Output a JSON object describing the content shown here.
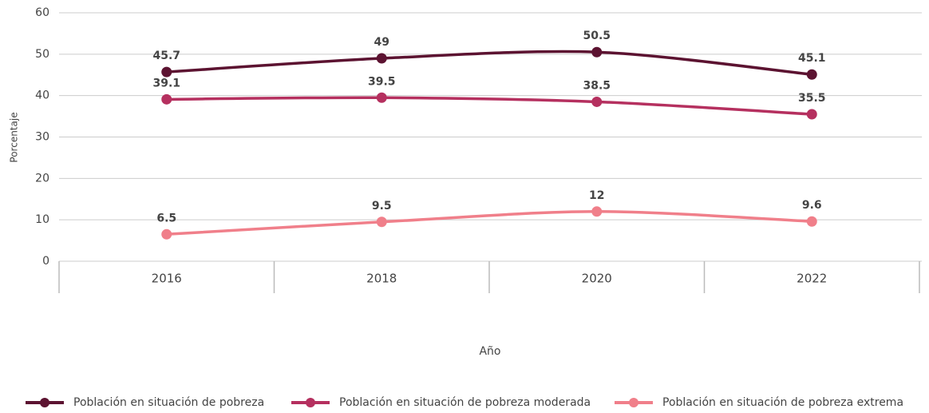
{
  "chart_data": {
    "type": "line",
    "x_label": "Año",
    "y_label": "Porcentaje",
    "categories": [
      "2016",
      "2018",
      "2020",
      "2022"
    ],
    "series": [
      {
        "name": "Población en situación de pobreza",
        "color": "#5c1331",
        "values": [
          45.7,
          49,
          50.5,
          45.1
        ]
      },
      {
        "name": "Población en situación de pobreza moderada",
        "color": "#b5305f",
        "values": [
          39.1,
          39.5,
          38.5,
          35.5
        ]
      },
      {
        "name": "Población en situación de pobreza extrema",
        "color": "#f07f8a",
        "values": [
          6.5,
          9.5,
          12,
          9.6
        ]
      }
    ],
    "ylim": [
      0,
      60
    ],
    "yticks": [
      0,
      10,
      20,
      30,
      40,
      50,
      60
    ],
    "grid": true,
    "legend": "bottom"
  }
}
